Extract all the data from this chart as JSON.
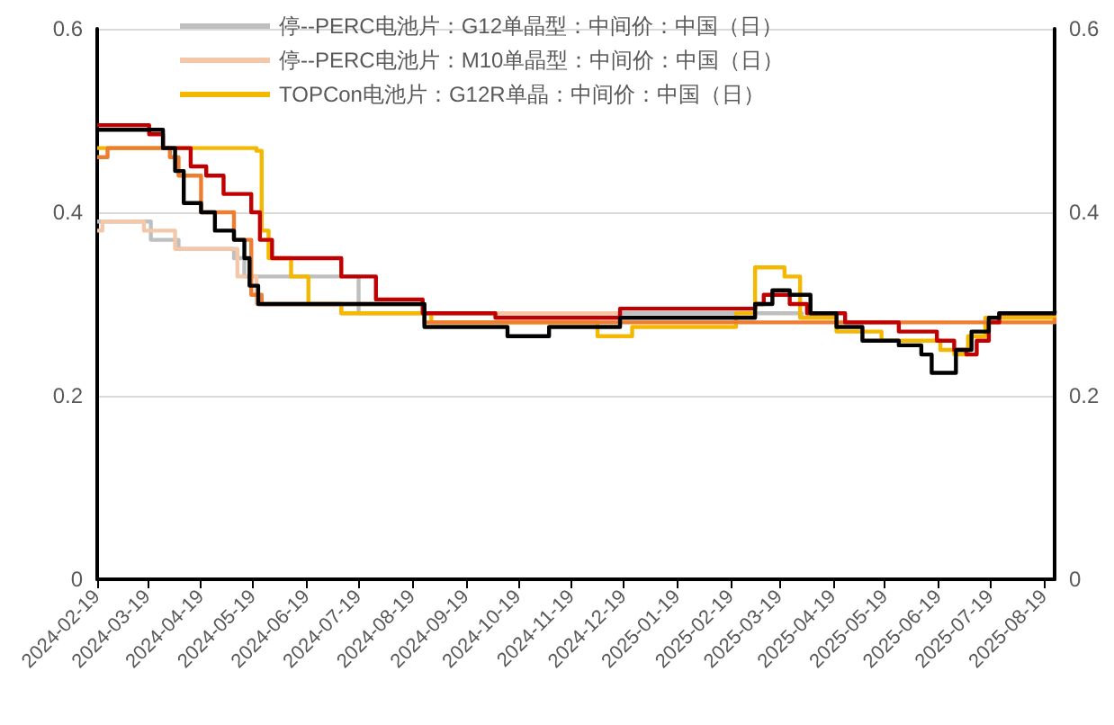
{
  "chart_data": {
    "type": "step",
    "xlim": [
      "2024-02-19",
      "2025-08-25"
    ],
    "xticks": [
      "2024-02-19",
      "2024-03-19",
      "2024-04-19",
      "2024-05-19",
      "2024-06-19",
      "2024-07-19",
      "2024-08-19",
      "2024-09-19",
      "2024-10-19",
      "2024-11-19",
      "2024-12-19",
      "2025-01-19",
      "2025-02-19",
      "2025-03-19",
      "2025-04-19",
      "2025-05-19",
      "2025-06-19",
      "2025-07-19",
      "2025-08-19"
    ],
    "ylim": [
      0,
      0.6
    ],
    "yticks": [
      0,
      0.2,
      0.4,
      0.6
    ],
    "y2lim": [
      0,
      0.6
    ],
    "y2ticks": [
      0,
      0.2,
      0.4,
      0.6
    ],
    "grid": "y",
    "legend": "top",
    "marker": "none",
    "line_style": "solid",
    "series": [
      {
        "name": "停--PERC电池片：G12单晶型：中间价：中国（日）",
        "color": "#bfbfbf",
        "x": [
          "2024-02-19",
          "2024-03-21",
          "2024-04-06",
          "2024-05-08",
          "2024-05-14",
          "2024-07-19",
          "2025-04-01"
        ],
        "values": [
          0.39,
          0.37,
          0.36,
          0.35,
          0.33,
          0.29,
          0.285
        ]
      },
      {
        "name": "停--PERC电池片：M10单晶型：中间价：中国（日）",
        "color": "#f4c7a8",
        "x": [
          "2024-02-19",
          "2024-02-22",
          "2024-03-17",
          "2024-04-04",
          "2024-05-10",
          "2024-05-21",
          "2024-07-09",
          "2024-12-17"
        ],
        "values": [
          0.38,
          0.39,
          0.38,
          0.36,
          0.33,
          0.3,
          0.29,
          0.29
        ]
      },
      {
        "name": "TOPCon电池片：G12R单晶：中间价：中国（日）",
        "color": "#f5b800",
        "x": [
          "2024-02-19",
          "2024-05-21",
          "2024-05-24",
          "2024-05-28",
          "2024-06-10",
          "2024-06-20",
          "2024-07-09",
          "2024-08-30",
          "2024-12-04",
          "2024-12-24",
          "2025-02-22",
          "2025-03-05",
          "2025-03-22",
          "2025-03-31",
          "2025-04-21",
          "2025-05-17",
          "2025-06-20",
          "2025-06-28",
          "2025-07-06",
          "2025-07-16",
          "2025-08-25"
        ],
        "values": [
          0.47,
          0.467,
          0.38,
          0.35,
          0.33,
          0.3,
          0.29,
          0.28,
          0.265,
          0.275,
          0.29,
          0.34,
          0.33,
          0.285,
          0.27,
          0.26,
          0.25,
          0.245,
          0.265,
          0.285,
          0.288
        ]
      },
      {
        "color": "#ed7d31",
        "x": [
          "2024-02-19",
          "2024-02-25",
          "2024-04-01",
          "2024-04-06",
          "2024-04-19",
          "2024-05-08",
          "2024-05-18",
          "2024-05-24",
          "2024-08-26",
          "2025-08-25"
        ],
        "values": [
          0.46,
          0.47,
          0.46,
          0.44,
          0.4,
          0.37,
          0.31,
          0.3,
          0.28,
          0.285
        ]
      },
      {
        "color": "#c00000",
        "x": [
          "2024-02-19",
          "2024-03-20",
          "2024-03-28",
          "2024-04-13",
          "2024-04-22",
          "2024-05-02",
          "2024-05-18",
          "2024-05-23",
          "2024-05-30",
          "2024-07-09",
          "2024-07-29",
          "2024-08-25",
          "2024-10-06",
          "2024-12-17",
          "2025-03-05",
          "2025-03-10",
          "2025-03-25",
          "2025-04-04",
          "2025-04-26",
          "2025-05-27",
          "2025-06-18",
          "2025-06-28",
          "2025-07-05",
          "2025-07-11",
          "2025-07-18",
          "2025-07-24",
          "2025-08-25"
        ],
        "values": [
          0.495,
          0.485,
          0.47,
          0.45,
          0.44,
          0.42,
          0.4,
          0.37,
          0.35,
          0.33,
          0.305,
          0.29,
          0.285,
          0.295,
          0.3,
          0.31,
          0.3,
          0.29,
          0.28,
          0.27,
          0.26,
          0.25,
          0.245,
          0.26,
          0.28,
          0.29,
          0.292
        ]
      },
      {
        "color": "#000000",
        "x": [
          "2024-02-19",
          "2024-03-28",
          "2024-04-04",
          "2024-04-09",
          "2024-04-19",
          "2024-04-27",
          "2024-05-08",
          "2024-05-14",
          "2024-05-17",
          "2024-05-22",
          "2024-08-26",
          "2024-10-13",
          "2024-11-06",
          "2024-12-17",
          "2025-03-05",
          "2025-03-15",
          "2025-03-25",
          "2025-04-06",
          "2025-04-21",
          "2025-05-06",
          "2025-05-27",
          "2025-06-09",
          "2025-06-15",
          "2025-06-29",
          "2025-07-08",
          "2025-07-18",
          "2025-07-24",
          "2025-08-25"
        ],
        "values": [
          0.49,
          0.47,
          0.445,
          0.41,
          0.4,
          0.38,
          0.37,
          0.35,
          0.32,
          0.3,
          0.275,
          0.265,
          0.275,
          0.285,
          0.3,
          0.315,
          0.31,
          0.29,
          0.275,
          0.26,
          0.255,
          0.245,
          0.225,
          0.25,
          0.27,
          0.285,
          0.29,
          0.293
        ]
      }
    ]
  }
}
